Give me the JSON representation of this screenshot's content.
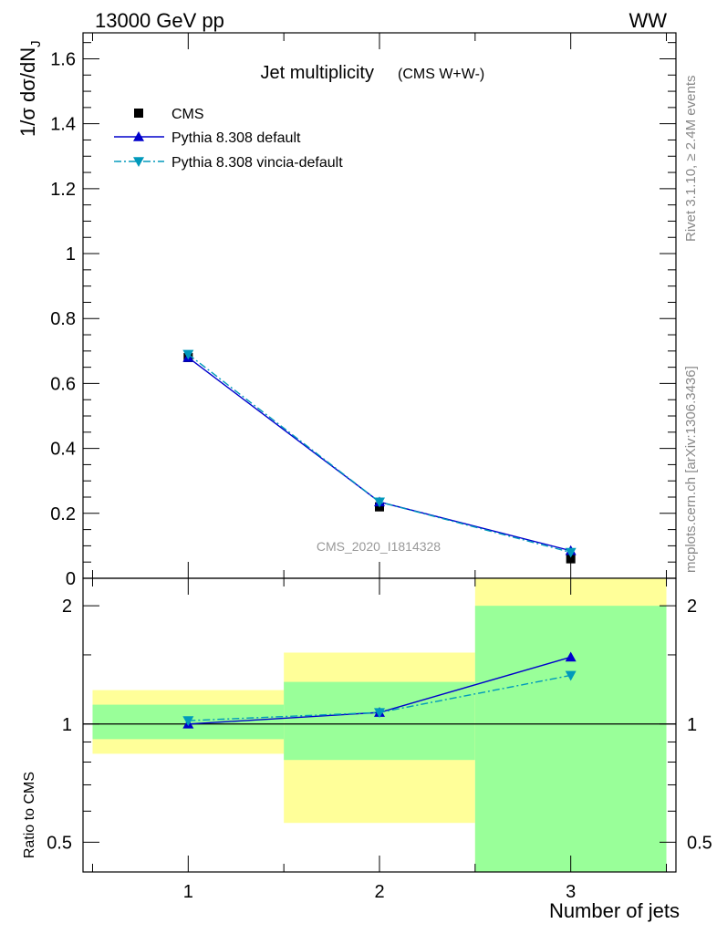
{
  "header": {
    "energy": "13000 GeV pp",
    "process": "WW"
  },
  "side": {
    "rivet": "Rivet 3.1.10, ≥ 2.4M events",
    "mcplots": "mcplots.cern.ch [arXiv:1306.3436]"
  },
  "analysis_id": "CMS_2020_I1814328",
  "chart_data": [
    {
      "type": "scatter",
      "title": "Jet multiplicity",
      "subtitle": "(CMS W+W-)",
      "xlabel": "Number of jets",
      "ylabel": "1/σ dσ/dN_J",
      "xlim": [
        0.45,
        3.55
      ],
      "ylim": [
        0,
        1.68
      ],
      "x_ticks": [
        "1",
        "2",
        "3"
      ],
      "y_ticks": [
        "0",
        "0.2",
        "0.4",
        "0.6",
        "0.8",
        "1",
        "1.2",
        "1.4",
        "1.6"
      ],
      "legend_position": "top-left",
      "series": [
        {
          "name": "CMS",
          "color": "#000000",
          "marker": "square",
          "x": [
            1,
            2,
            3
          ],
          "y": [
            0.68,
            0.22,
            0.06
          ]
        },
        {
          "name": "Pythia 8.308 default",
          "color": "#0000cc",
          "marker": "triangle-up",
          "line": "solid",
          "x": [
            1,
            2,
            3
          ],
          "y": [
            0.68,
            0.235,
            0.085
          ]
        },
        {
          "name": "Pythia 8.308 vincia-default",
          "color": "#0099bb",
          "marker": "triangle-down",
          "line": "dash-dot",
          "x": [
            1,
            2,
            3
          ],
          "y": [
            0.69,
            0.235,
            0.08
          ]
        }
      ]
    },
    {
      "type": "scatter",
      "ylabel": "Ratio to CMS",
      "xlabel": "Number of jets",
      "ylim": [
        0.42,
        2.35
      ],
      "y_scale": "log",
      "y_ticks": [
        "0.5",
        "1",
        "2"
      ],
      "bands": [
        {
          "x_range": [
            0.5,
            1.5
          ],
          "yellow": [
            0.84,
            1.22
          ],
          "green": [
            0.915,
            1.12
          ]
        },
        {
          "x_range": [
            1.5,
            2.5
          ],
          "yellow": [
            0.56,
            1.52
          ],
          "green": [
            0.81,
            1.28
          ]
        },
        {
          "x_range": [
            2.5,
            3.5
          ],
          "yellow": [
            0.42,
            2.35
          ],
          "green": [
            0.42,
            2.0
          ]
        }
      ],
      "series": [
        {
          "name": "Pythia 8.308 default",
          "color": "#0000cc",
          "marker": "triangle-up",
          "line": "solid",
          "x": [
            1,
            2,
            3
          ],
          "y": [
            1.0,
            1.07,
            1.48
          ]
        },
        {
          "name": "Pythia 8.308 vincia-default",
          "color": "#0099bb",
          "marker": "triangle-down",
          "line": "dash-dot",
          "x": [
            1,
            2,
            3
          ],
          "y": [
            1.02,
            1.07,
            1.33
          ]
        }
      ]
    }
  ]
}
